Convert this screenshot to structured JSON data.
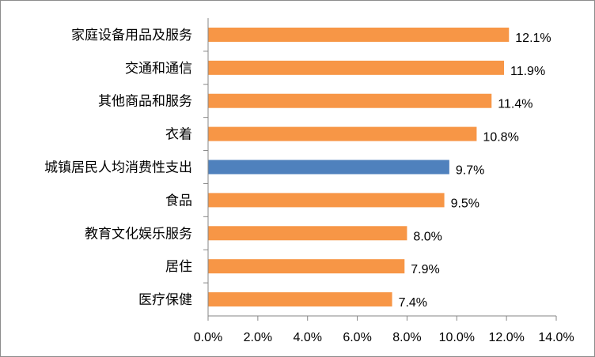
{
  "chart_data": {
    "type": "bar",
    "orientation": "horizontal",
    "title": "",
    "xlabel": "",
    "ylabel": "",
    "categories": [
      "家庭设备用品及服务",
      "交通和通信",
      "其他商品和服务",
      "衣着",
      "城镇居民人均消费性支出",
      "食品",
      "教育文化娱乐服务",
      "居住",
      "医疗保健"
    ],
    "values": [
      12.1,
      11.9,
      11.4,
      10.8,
      9.7,
      9.5,
      8.0,
      7.9,
      7.4
    ],
    "value_labels": [
      "12.1%",
      "11.9%",
      "11.4%",
      "10.8%",
      "9.7%",
      "9.5%",
      "8.0%",
      "7.9%",
      "7.4%"
    ],
    "highlight_category": "城镇居民人均消费性支出",
    "colors": {
      "default": "#F79646",
      "highlight": "#4F81BD",
      "axis": "#868686"
    },
    "xlim": [
      0,
      14
    ],
    "x_ticks": [
      0,
      2,
      4,
      6,
      8,
      10,
      12,
      14
    ],
    "x_tick_labels": [
      "0.0%",
      "2.0%",
      "4.0%",
      "6.0%",
      "8.0%",
      "10.0%",
      "12.0%",
      "14.0%"
    ],
    "grid": false,
    "legend": "none"
  }
}
